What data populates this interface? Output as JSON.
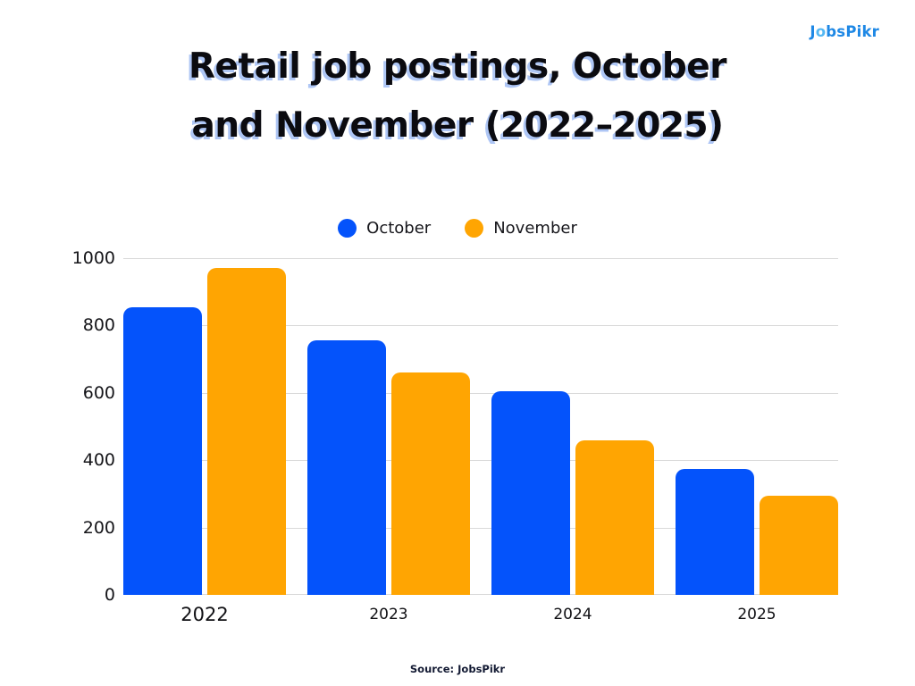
{
  "logo": {
    "part1": "J",
    "part2": "o",
    "part3": "bsPikr",
    "color_main": "#1e88e5",
    "color_accent": "#53b7f3"
  },
  "header": {
    "title_line1": "Retail job postings, October",
    "title_line2": "and November (2022–2025)",
    "text_color": "#0b0b10",
    "shadow_color": "#aec6f5"
  },
  "legend": {
    "items": [
      {
        "label": "October",
        "color": "#0453fb"
      },
      {
        "label": "November",
        "color": "#ffa502"
      }
    ]
  },
  "chart_data": {
    "type": "bar",
    "categories": [
      "2022",
      "2023",
      "2024",
      "2025"
    ],
    "series": [
      {
        "name": "October",
        "color": "#0453fb",
        "values": [
          855,
          755,
          605,
          375
        ]
      },
      {
        "name": "November",
        "color": "#ffa502",
        "values": [
          970,
          660,
          460,
          295
        ]
      }
    ],
    "title": "Retail job postings, October and November (2022–2025)",
    "xlabel": "",
    "ylabel": "",
    "ylim": [
      0,
      1000
    ],
    "yticks": [
      0,
      200,
      400,
      600,
      800,
      1000
    ],
    "grid": true,
    "gridline_color": "#d9d9d9",
    "legend_position": "top-center"
  },
  "footer": {
    "source": "Source: JobsPikr"
  }
}
